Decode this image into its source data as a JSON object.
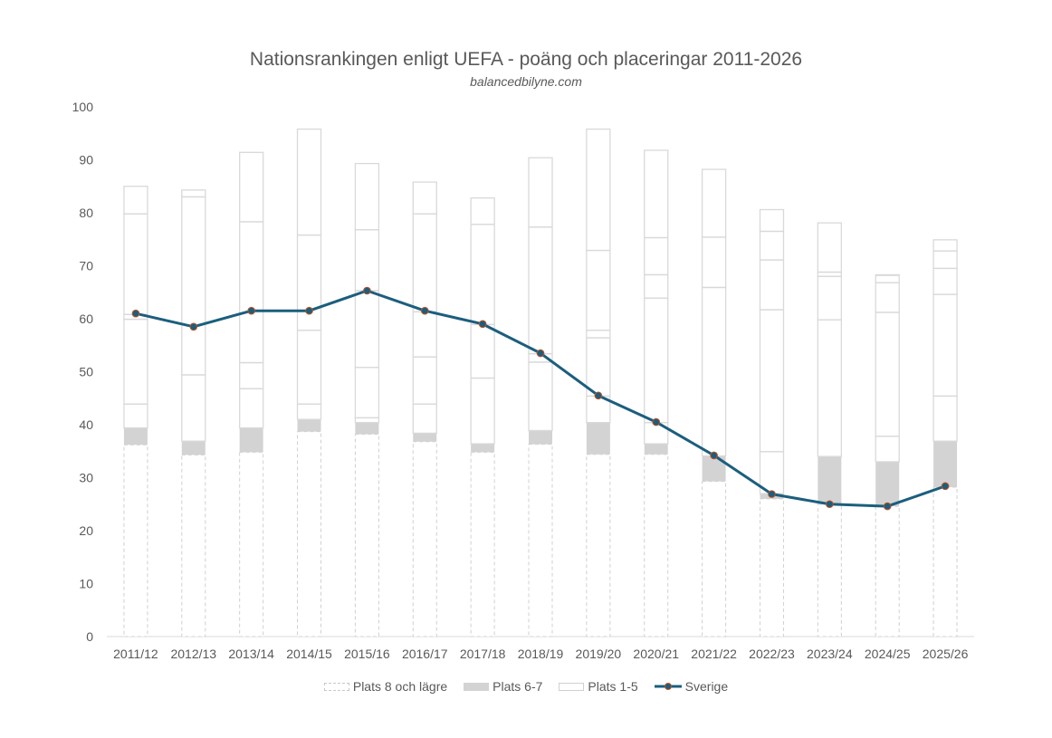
{
  "chart_data": {
    "type": "bar",
    "title": "Nationsrankingen enligt UEFA - poäng och placeringar 2011-2026",
    "subtitle": "balancedbilyne.com",
    "xlabel": "",
    "ylabel": "",
    "ylim": [
      0,
      100
    ],
    "yticks": [
      "0",
      "10",
      "20",
      "30",
      "40",
      "50",
      "60",
      "70",
      "80",
      "90",
      "100"
    ],
    "grid": false,
    "legend_position": "bottom",
    "categories": [
      "2011/12",
      "2012/13",
      "2013/14",
      "2014/15",
      "2015/16",
      "2016/17",
      "2017/18",
      "2018/19",
      "2019/20",
      "2020/21",
      "2021/22",
      "2022/23",
      "2023/24",
      "2024/25",
      "2025/26"
    ],
    "series": [
      {
        "name": "Plats 8 och lägre",
        "style": "dashed-outline",
        "values": [
          36.2,
          34.3,
          34.8,
          38.7,
          38.2,
          36.8,
          34.8,
          36.3,
          34.4,
          34.4,
          29.3,
          26.0,
          25.0,
          24.6,
          28.2
        ]
      },
      {
        "name": "Plats 6-7",
        "style": "grey-fill",
        "values": [
          39.4,
          36.9,
          39.4,
          41.0,
          40.4,
          38.4,
          36.4,
          38.9,
          40.4,
          36.4,
          34.1,
          27.0,
          34.0,
          33.0,
          36.9
        ]
      },
      {
        "name": "Plats 1-5",
        "style": "white-outline",
        "values": [
          [
            43.9,
            59.9,
            60.8,
            79.8,
            85.0
          ],
          [
            49.4,
            49.4,
            83.0,
            83.0,
            84.3
          ],
          [
            46.8,
            51.7,
            78.3,
            78.3,
            91.4
          ],
          [
            43.9,
            57.8,
            57.8,
            75.8,
            95.8
          ],
          [
            41.3,
            50.8,
            65.3,
            76.8,
            89.3
          ],
          [
            43.9,
            52.8,
            61.3,
            79.8,
            85.8
          ],
          [
            48.8,
            58.9,
            58.9,
            77.8,
            82.8
          ],
          [
            51.8,
            53.4,
            53.4,
            77.3,
            90.4
          ],
          [
            45.4,
            56.4,
            57.8,
            72.9,
            95.8
          ],
          [
            40.4,
            63.9,
            68.3,
            75.3,
            91.8
          ],
          [
            65.9,
            65.9,
            65.9,
            75.4,
            88.2
          ],
          [
            34.9,
            61.7,
            71.1,
            76.5,
            80.6
          ],
          [
            59.8,
            68.0,
            68.8,
            68.8,
            78.1
          ],
          [
            37.8,
            61.2,
            66.8,
            68.2,
            68.3
          ],
          [
            45.4,
            64.6,
            69.5,
            72.8,
            74.9
          ]
        ]
      },
      {
        "name": "Sverige",
        "type": "line",
        "values": [
          61.0,
          58.5,
          61.5,
          61.5,
          65.3,
          61.5,
          59.0,
          53.5,
          45.5,
          40.5,
          34.2,
          26.9,
          25.0,
          24.6,
          28.4
        ]
      }
    ],
    "colors": {
      "line": "#1b5e7e",
      "marker_edge": "#c0501f",
      "grey": "#d3d3d3",
      "outline": "#d9d9d9",
      "text": "#595959"
    }
  }
}
